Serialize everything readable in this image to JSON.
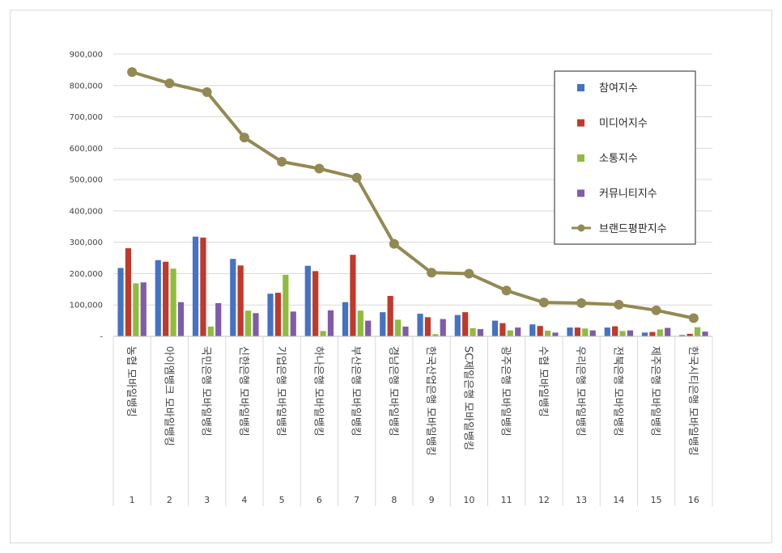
{
  "chart_data": {
    "type": "bar",
    "categories": [
      "농협 모바일뱅킹",
      "아이엠뱅크 모바일뱅킹",
      "국민은행 모바일뱅킹",
      "신한은행 모바일뱅킹",
      "기업은행 모바일뱅킹",
      "하나은행 모바일뱅킹",
      "부산은행 모바일뱅킹",
      "경남은행 모바일뱅킹",
      "한국산업은행 모바일뱅킹",
      "SC제일은행 모바일뱅킹",
      "광주은행 모바일뱅킹",
      "수협 모바일뱅킹",
      "우리은행 모바일뱅킹",
      "전북은행 모바일뱅킹",
      "제주은행 모바일뱅킹",
      "한국시티은행 모바일뱅킹"
    ],
    "ranks": [
      "1",
      "2",
      "3",
      "4",
      "5",
      "6",
      "7",
      "8",
      "9",
      "10",
      "11",
      "12",
      "13",
      "14",
      "15",
      "16"
    ],
    "series": [
      {
        "name": "참여지수",
        "kind": "bar",
        "color": "#4472c4",
        "values": [
          218000,
          243000,
          318000,
          247000,
          136000,
          225000,
          109000,
          77000,
          72000,
          68000,
          50000,
          38000,
          28000,
          28000,
          12000,
          4000
        ]
      },
      {
        "name": "미디어지수",
        "kind": "bar",
        "color": "#c0392b",
        "values": [
          281000,
          238000,
          315000,
          226000,
          139000,
          208000,
          260000,
          129000,
          61000,
          77000,
          42000,
          33000,
          28000,
          32000,
          14000,
          8000
        ]
      },
      {
        "name": "소통지수",
        "kind": "bar",
        "color": "#8fbc3c",
        "values": [
          169000,
          216000,
          31000,
          82000,
          196000,
          17000,
          82000,
          53000,
          7000,
          26000,
          19000,
          18000,
          25000,
          17000,
          22000,
          29000
        ]
      },
      {
        "name": "커뮤니티지수",
        "kind": "bar",
        "color": "#7f5ca8",
        "values": [
          172000,
          109000,
          106000,
          74000,
          79000,
          83000,
          50000,
          31000,
          55000,
          23000,
          28000,
          12000,
          19000,
          19000,
          27000,
          15000
        ]
      },
      {
        "name": "브랜드평판지수",
        "kind": "line",
        "color": "#938953",
        "values": [
          843000,
          807000,
          779000,
          634000,
          557000,
          535000,
          506000,
          295000,
          203000,
          200000,
          146000,
          108000,
          106000,
          101000,
          83000,
          58000
        ]
      }
    ],
    "ylim": [
      0,
      900000
    ],
    "yticks": [
      "-",
      "100,000",
      "200,000",
      "300,000",
      "400,000",
      "500,000",
      "600,000",
      "700,000",
      "800,000",
      "900,000"
    ],
    "grid": true,
    "legend": "top-right"
  }
}
